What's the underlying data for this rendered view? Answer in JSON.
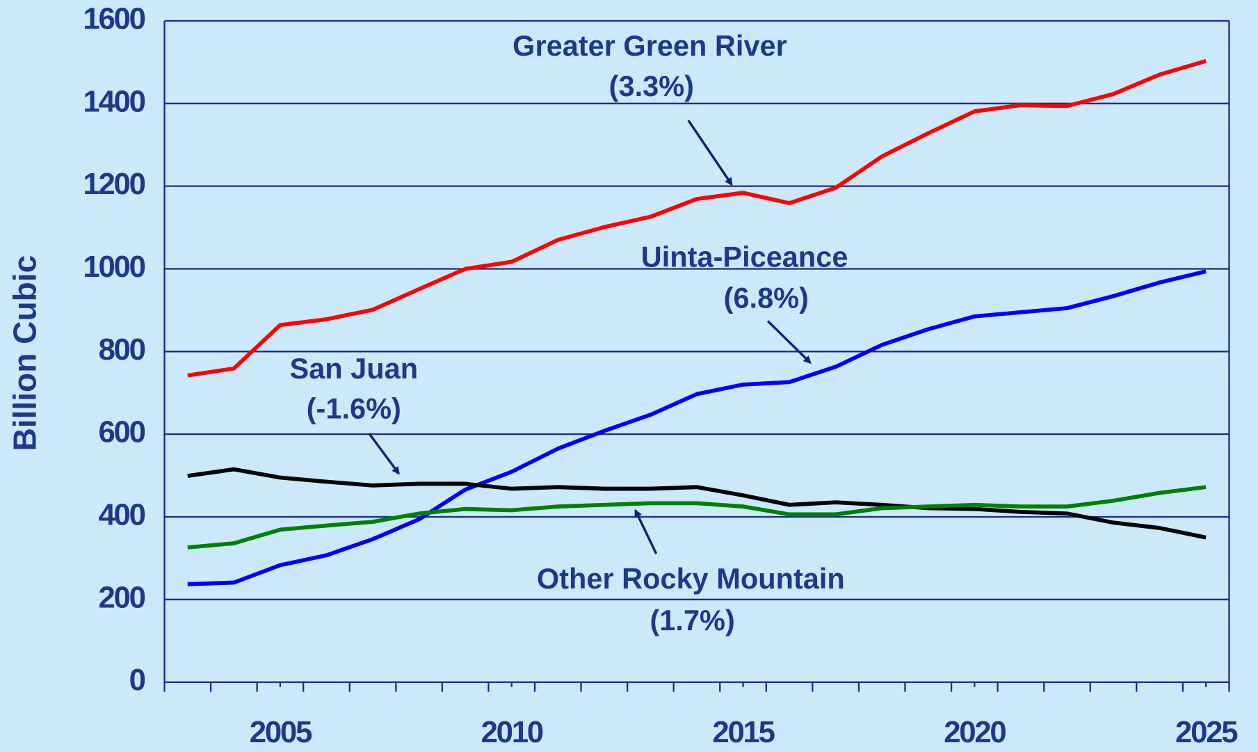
{
  "chart_data": {
    "type": "line",
    "y_label": "Billion Cubic",
    "x": [
      2003,
      2004,
      2005,
      2006,
      2007,
      2008,
      2009,
      2010,
      2011,
      2012,
      2013,
      2014,
      2015,
      2016,
      2017,
      2018,
      2019,
      2020,
      2021,
      2022,
      2023,
      2024,
      2025
    ],
    "series": [
      {
        "name": "Greater Green River",
        "label": "(3.3%)",
        "color": "#ff0000",
        "values": [
          742,
          759,
          864,
          878,
          901,
          951,
          1000,
          1017,
          1070,
          1101,
          1126,
          1169,
          1184,
          1159,
          1196,
          1272,
          1328,
          1381,
          1396,
          1394,
          1423,
          1470,
          1503
        ]
      },
      {
        "name": "Uinta-Piceance",
        "label": "(6.8%)",
        "color": "#0000ff",
        "values": [
          237,
          241,
          283,
          307,
          346,
          394,
          466,
          509,
          565,
          608,
          647,
          697,
          720,
          726,
          763,
          816,
          854,
          885,
          895,
          905,
          934,
          967,
          994
        ]
      },
      {
        "name": "San Juan",
        "label": "(-1.6%)",
        "color": "#000000",
        "values": [
          499,
          515,
          495,
          485,
          476,
          480,
          480,
          468,
          472,
          468,
          468,
          472,
          452,
          429,
          435,
          429,
          421,
          419,
          412,
          408,
          386,
          373,
          350
        ]
      },
      {
        "name": "Other Rocky Mountain",
        "label": "(1.7%)",
        "color": "#008000",
        "values": [
          326,
          336,
          369,
          379,
          388,
          408,
          419,
          416,
          425,
          429,
          433,
          433,
          425,
          406,
          406,
          421,
          425,
          429,
          425,
          425,
          439,
          458,
          472
        ]
      }
    ],
    "xlim": [
      2002.5,
      2025.5
    ],
    "xticks": [
      2005,
      2010,
      2015,
      2020,
      2025
    ],
    "ylim": [
      0,
      1600
    ],
    "yticks": [
      0,
      200,
      400,
      600,
      800,
      1000,
      1200,
      1400,
      1600
    ],
    "grid": true
  }
}
